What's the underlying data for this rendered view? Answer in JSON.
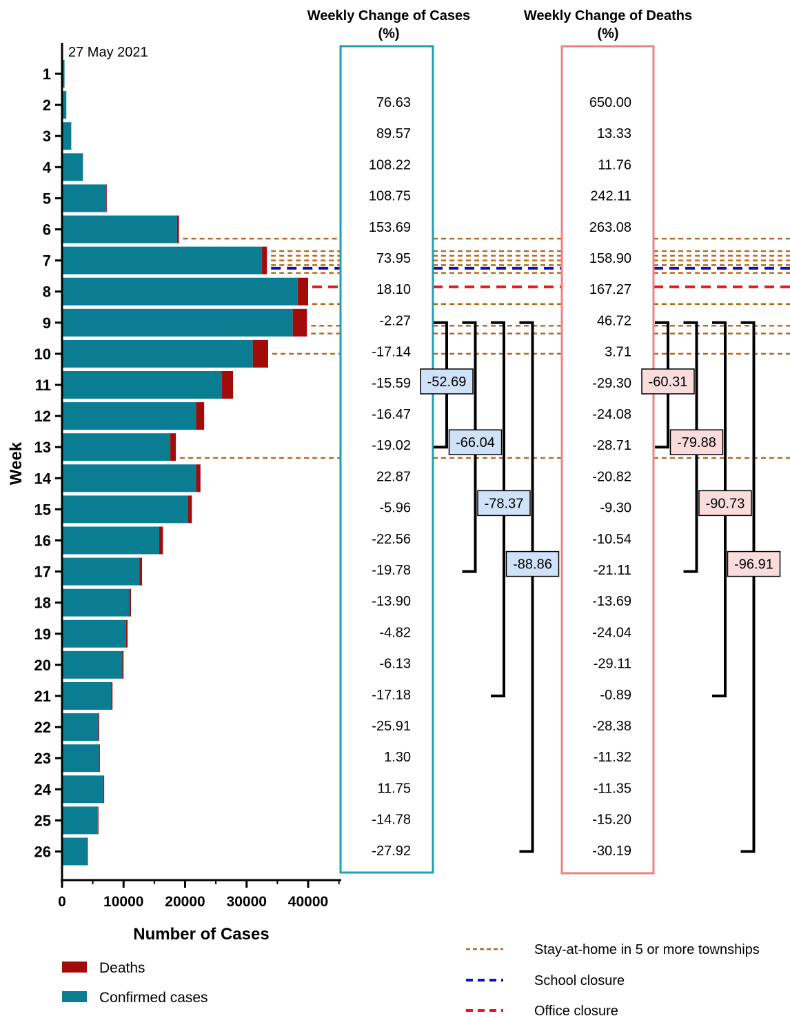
{
  "chart_data": {
    "type": "bar",
    "orientation": "horizontal",
    "stacked": true,
    "annotation_date": "27 May 2021",
    "ylabel": "Week",
    "xlabel": "Number of Cases",
    "xlim": [
      0,
      45000
    ],
    "xticks": [
      "0",
      "10000",
      "20000",
      "30000",
      "40000"
    ],
    "categories": [
      "1",
      "2",
      "3",
      "4",
      "5",
      "6",
      "7",
      "8",
      "9",
      "10",
      "11",
      "12",
      "13",
      "14",
      "15",
      "16",
      "17",
      "18",
      "19",
      "20",
      "21",
      "22",
      "23",
      "24",
      "25",
      "26"
    ],
    "series": [
      {
        "name": "Confirmed cases",
        "color": "#0a7d93",
        "values": [
          400,
          700,
          1500,
          3400,
          7200,
          18700,
          32500,
          38300,
          37500,
          31000,
          26000,
          21800,
          17600,
          21800,
          20500,
          15800,
          12600,
          10900,
          10400,
          9800,
          8000,
          5900,
          6000,
          6700,
          5800,
          4100
        ]
      },
      {
        "name": "Deaths",
        "color": "#a30b0b",
        "values": [
          0,
          0,
          0,
          0,
          80,
          300,
          800,
          1700,
          2300,
          2500,
          1800,
          1300,
          900,
          700,
          600,
          600,
          400,
          300,
          250,
          200,
          200,
          150,
          150,
          150,
          120,
          100
        ]
      }
    ],
    "cases_change": {
      "title": "Weekly Change of Cases",
      "unit": "(%)",
      "color": "#1fa0b0",
      "values": [
        "76.63",
        "89.57",
        "108.22",
        "108.75",
        "153.69",
        "73.95",
        "18.10",
        "-2.27",
        "-17.14",
        "-15.59",
        "-16.47",
        "-19.02",
        "22.87",
        "-5.96",
        "-22.56",
        "-19.78",
        "-13.90",
        "-4.82",
        "-6.13",
        "-17.18",
        "-25.91",
        "1.30",
        "11.75",
        "-14.78",
        "-27.92"
      ]
    },
    "deaths_change": {
      "title": "Weekly Change of Deaths",
      "unit": "(%)",
      "color": "#f08080",
      "values": [
        "650.00",
        "13.33",
        "11.76",
        "242.11",
        "263.08",
        "158.90",
        "167.27",
        "46.72",
        "3.71",
        "-29.30",
        "-24.08",
        "-28.71",
        "-20.82",
        "-9.30",
        "-10.54",
        "-21.11",
        "-13.69",
        "-24.04",
        "-29.11",
        "-0.89",
        "-28.38",
        "-11.32",
        "-11.35",
        "-15.20",
        "-30.19"
      ]
    },
    "cases_brackets": [
      {
        "value": "-52.69",
        "from_week": 9,
        "to_week": 13
      },
      {
        "value": "-66.04",
        "from_week": 9,
        "to_week": 17
      },
      {
        "value": "-78.37",
        "from_week": 9,
        "to_week": 21
      },
      {
        "value": "-88.86",
        "from_week": 9,
        "to_week": 26
      }
    ],
    "deaths_brackets": [
      {
        "value": "-60.31",
        "from_week": 9,
        "to_week": 13
      },
      {
        "value": "-79.88",
        "from_week": 9,
        "to_week": 17
      },
      {
        "value": "-90.73",
        "from_week": 9,
        "to_week": 21
      },
      {
        "value": "-96.91",
        "from_week": 9,
        "to_week": 26
      }
    ],
    "bracket_label_colors": {
      "cases": "#cfe2f7",
      "deaths": "#fbdcdc"
    },
    "policy_lines": [
      {
        "type": "stay-at-home",
        "week": 6.3
      },
      {
        "type": "stay-at-home",
        "week": 6.7
      },
      {
        "type": "stay-at-home",
        "week": 6.85
      },
      {
        "type": "stay-at-home",
        "week": 7.0
      },
      {
        "type": "stay-at-home",
        "week": 7.15
      },
      {
        "type": "school",
        "week": 7.25
      },
      {
        "type": "stay-at-home",
        "week": 7.4
      },
      {
        "type": "office",
        "week": 7.85
      },
      {
        "type": "stay-at-home",
        "week": 8.4
      },
      {
        "type": "stay-at-home",
        "week": 9.1
      },
      {
        "type": "stay-at-home",
        "week": 9.35
      },
      {
        "type": "stay-at-home",
        "week": 10.0
      },
      {
        "type": "stay-at-home",
        "week": 13.35
      }
    ],
    "legend": {
      "bars": [
        {
          "label": "Deaths",
          "color": "#a30b0b"
        },
        {
          "label": "Confirmed cases",
          "color": "#0a7d93"
        }
      ],
      "lines": [
        {
          "key": "stay-at-home",
          "label": "Stay-at-home in 5 or more townships",
          "color": "#b8651b"
        },
        {
          "key": "school",
          "label": "School closure",
          "color": "#0a14b4"
        },
        {
          "key": "office",
          "label": "Office closure",
          "color": "#e81818"
        }
      ]
    }
  }
}
